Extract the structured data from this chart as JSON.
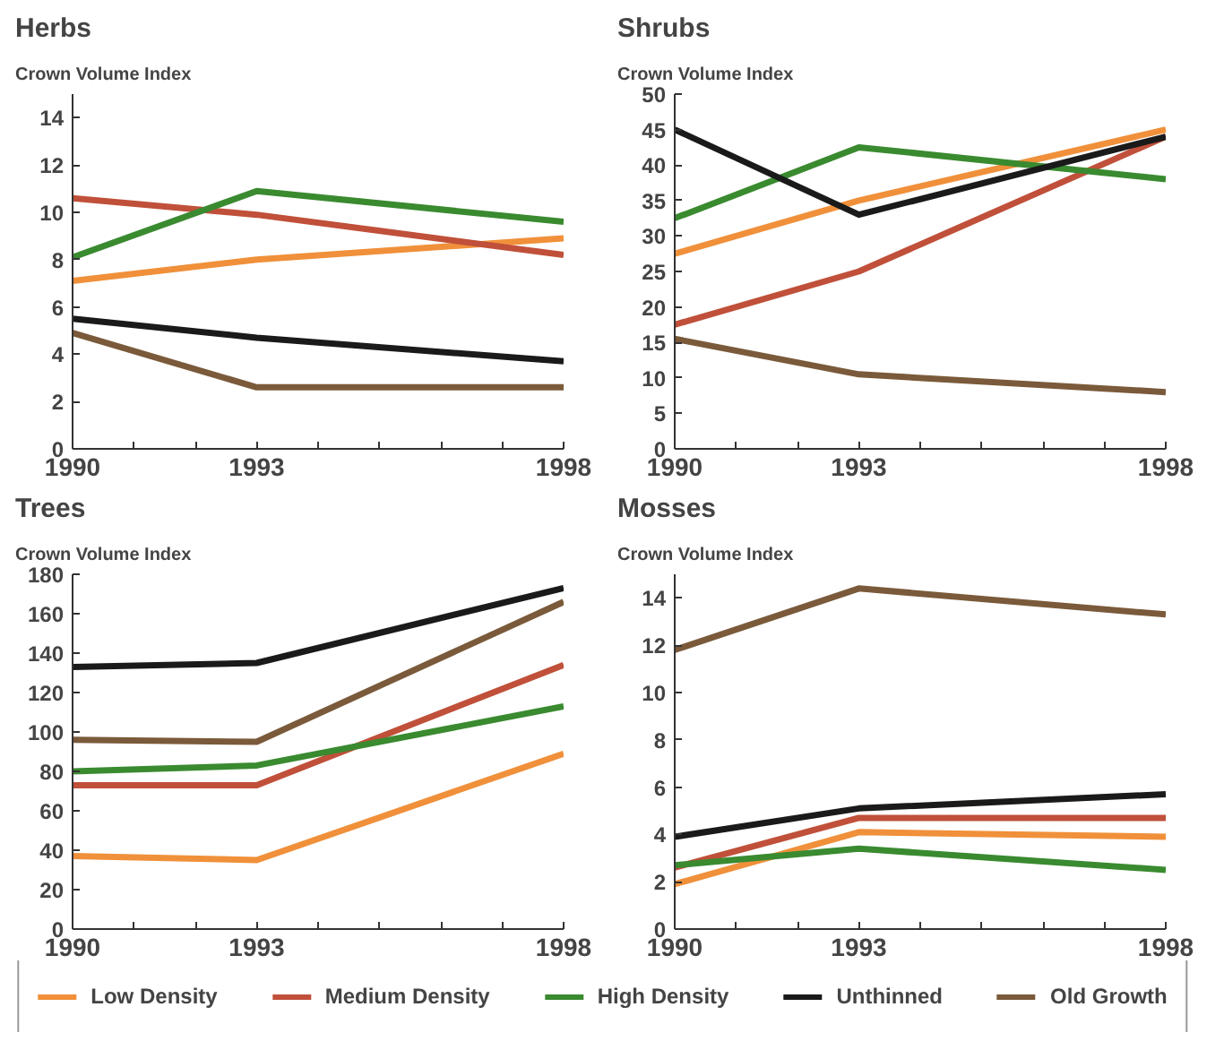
{
  "chart_data": [
    {
      "type": "line",
      "title": "Herbs",
      "ylabel": "Crown Volume Index",
      "x": [
        1990,
        1993,
        1998
      ],
      "xlim": [
        1990,
        1998
      ],
      "xticks": [
        1990,
        {
          "value": 1991,
          "label": null
        },
        {
          "value": 1992,
          "label": null
        },
        1993,
        {
          "value": 1994,
          "label": null
        },
        {
          "value": 1995,
          "label": null
        },
        {
          "value": 1996,
          "label": null
        },
        {
          "value": 1997,
          "label": null
        },
        1998
      ],
      "ylim": [
        0,
        15
      ],
      "yticks": [
        0,
        2,
        4,
        6,
        8,
        10,
        12,
        14
      ],
      "series": [
        {
          "color": "#f0903a",
          "values": [
            7.1,
            8.0,
            8.9
          ]
        },
        {
          "color": "#c0503a",
          "values": [
            10.6,
            9.9,
            8.2
          ]
        },
        {
          "color": "#3a8a30",
          "values": [
            8.1,
            10.9,
            9.6
          ]
        },
        {
          "color": "#1a1a1a",
          "values": [
            5.5,
            4.7,
            3.7
          ]
        },
        {
          "color": "#7a5a3a",
          "values": [
            4.9,
            2.6,
            2.6
          ]
        }
      ]
    },
    {
      "type": "line",
      "title": "Shrubs",
      "ylabel": "Crown Volume Index",
      "x": [
        1990,
        1993,
        1998
      ],
      "xlim": [
        1990,
        1998
      ],
      "xticks": [
        1990,
        {
          "value": 1991,
          "label": null
        },
        {
          "value": 1992,
          "label": null
        },
        1993,
        {
          "value": 1994,
          "label": null
        },
        {
          "value": 1995,
          "label": null
        },
        {
          "value": 1996,
          "label": null
        },
        {
          "value": 1997,
          "label": null
        },
        1998
      ],
      "ylim": [
        0,
        50
      ],
      "yticks": [
        0,
        5,
        10,
        15,
        20,
        25,
        30,
        35,
        40,
        45,
        50
      ],
      "series": [
        {
          "color": "#f0903a",
          "values": [
            27.5,
            35,
            45
          ]
        },
        {
          "color": "#c0503a",
          "values": [
            17.5,
            25,
            44
          ]
        },
        {
          "color": "#3a8a30",
          "values": [
            32.5,
            42.5,
            38
          ]
        },
        {
          "color": "#1a1a1a",
          "values": [
            45,
            33,
            44
          ]
        },
        {
          "color": "#7a5a3a",
          "values": [
            15.5,
            10.5,
            8
          ]
        }
      ]
    },
    {
      "type": "line",
      "title": "Trees",
      "ylabel": "Crown Volume Index",
      "x": [
        1990,
        1993,
        1998
      ],
      "xlim": [
        1990,
        1998
      ],
      "xticks": [
        1990,
        {
          "value": 1991,
          "label": null
        },
        {
          "value": 1992,
          "label": null
        },
        1993,
        {
          "value": 1994,
          "label": null
        },
        {
          "value": 1995,
          "label": null
        },
        {
          "value": 1996,
          "label": null
        },
        {
          "value": 1997,
          "label": null
        },
        1998
      ],
      "ylim": [
        0,
        180
      ],
      "yticks": [
        0,
        20,
        40,
        60,
        80,
        100,
        120,
        140,
        160,
        180
      ],
      "series": [
        {
          "color": "#f0903a",
          "values": [
            37,
            35,
            89
          ]
        },
        {
          "color": "#c0503a",
          "values": [
            73,
            73,
            134
          ]
        },
        {
          "color": "#3a8a30",
          "values": [
            80,
            83,
            113
          ]
        },
        {
          "color": "#1a1a1a",
          "values": [
            133,
            135,
            173
          ]
        },
        {
          "color": "#7a5a3a",
          "values": [
            96,
            95,
            166
          ]
        }
      ]
    },
    {
      "type": "line",
      "title": "Mosses",
      "ylabel": "Crown Volume Index",
      "x": [
        1990,
        1993,
        1998
      ],
      "xlim": [
        1990,
        1998
      ],
      "xticks": [
        1990,
        {
          "value": 1991,
          "label": null
        },
        {
          "value": 1992,
          "label": null
        },
        1993,
        {
          "value": 1994,
          "label": null
        },
        {
          "value": 1995,
          "label": null
        },
        {
          "value": 1996,
          "label": null
        },
        {
          "value": 1997,
          "label": null
        },
        1998
      ],
      "ylim": [
        0,
        15
      ],
      "yticks": [
        0,
        2,
        4,
        6,
        8,
        10,
        12,
        14
      ],
      "legend": "bottom",
      "series": [
        {
          "name": "Low Density",
          "color": "#f0903a",
          "values": [
            1.9,
            4.1,
            3.9
          ]
        },
        {
          "name": "Medium Density",
          "color": "#c0503a",
          "values": [
            2.6,
            4.7,
            4.7
          ]
        },
        {
          "name": "High Density",
          "color": "#3a8a30",
          "values": [
            2.7,
            3.4,
            2.5
          ]
        },
        {
          "name": "Unthinned",
          "color": "#1a1a1a",
          "values": [
            3.9,
            5.1,
            5.7
          ]
        },
        {
          "name": "Old Growth",
          "color": "#7a5a3a",
          "values": [
            11.8,
            14.4,
            13.3
          ]
        }
      ]
    }
  ]
}
